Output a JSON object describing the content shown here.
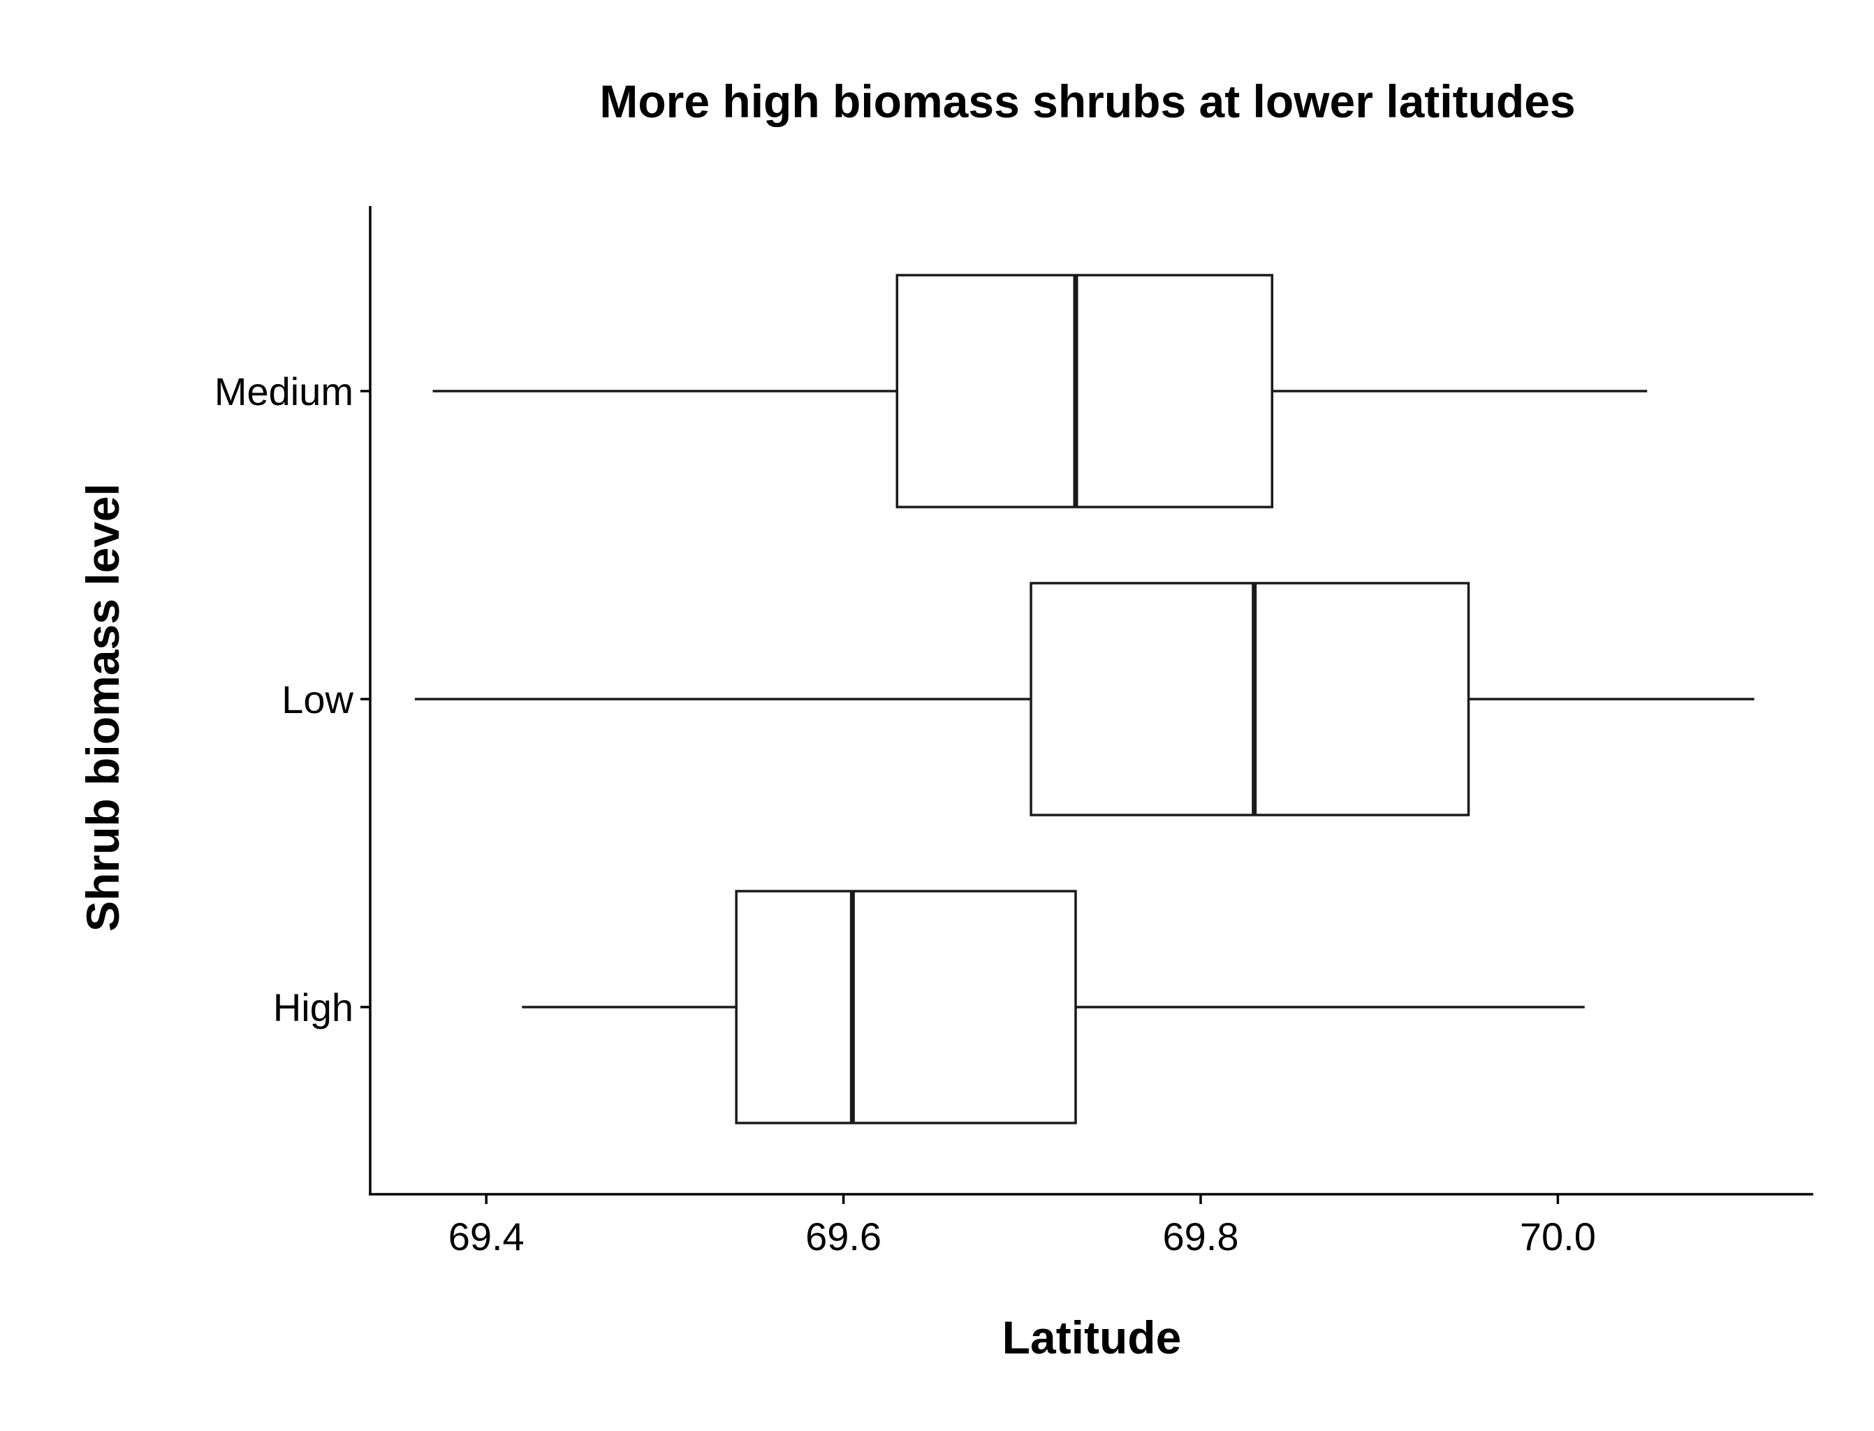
{
  "chart_data": {
    "type": "boxplot",
    "orientation": "horizontal",
    "title": "More high biomass shrubs at lower latitudes",
    "xlabel": "Latitude",
    "ylabel": "Shrub biomass level",
    "xlim": [
      69.335,
      70.143
    ],
    "x_ticks": [
      69.4,
      69.6,
      69.8,
      70.0
    ],
    "x_tick_labels": [
      "69.4",
      "69.6",
      "69.8",
      "70.0"
    ],
    "categories": [
      "High",
      "Low",
      "Medium"
    ],
    "grid": false,
    "legend": "none",
    "series": [
      {
        "category": "Medium",
        "whisker_low": 69.37,
        "q1": 69.63,
        "median": 69.73,
        "q3": 69.84,
        "whisker_high": 70.05
      },
      {
        "category": "Low",
        "whisker_low": 69.36,
        "q1": 69.705,
        "median": 69.83,
        "q3": 69.95,
        "whisker_high": 70.11
      },
      {
        "category": "High",
        "whisker_low": 69.42,
        "q1": 69.54,
        "median": 69.605,
        "q3": 69.73,
        "whisker_high": 70.015
      }
    ],
    "colors": {
      "box_fill": "#ffffff",
      "box_stroke": "#1a1a1a",
      "axis": "#000000"
    }
  }
}
